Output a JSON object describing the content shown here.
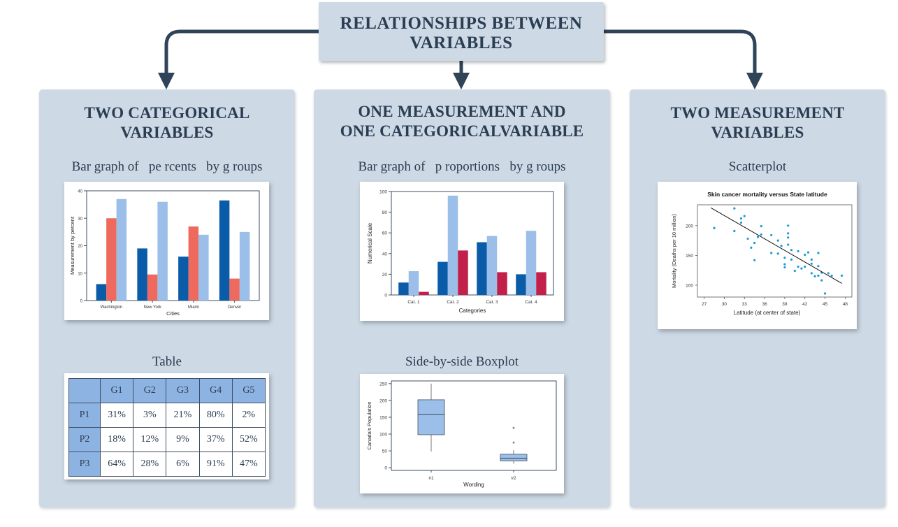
{
  "title": {
    "line1": "RELATIONSHIPS BETWEEN",
    "line2": "VARIABLES"
  },
  "panels": [
    {
      "title1": "TWO CATEGORICAL",
      "title2": "VARIABLES",
      "caption1": "Bar graph of   pe rcents   by g roups",
      "caption2": "Table"
    },
    {
      "title1": "ONE MEASUREMENT AND",
      "title2": "ONE CATEGORICALVARIABLE",
      "caption1": "Bar graph of   p roportions   by g roups",
      "caption2": "Side-by-side Boxplot"
    },
    {
      "title1": "TWO MEASUREMENT",
      "title2": "VARIABLES",
      "caption1": "Scatterplot"
    }
  ],
  "table": {
    "header": [
      "",
      "G1",
      "G2",
      "G3",
      "G4",
      "G5"
    ],
    "rows": [
      [
        "P1",
        "31%",
        "3%",
        "21%",
        "80%",
        "2%"
      ],
      [
        "P2",
        "18%",
        "12%",
        "9%",
        "37%",
        "52%"
      ],
      [
        "P3",
        "64%",
        "28%",
        "6%",
        "91%",
        "47%"
      ]
    ]
  },
  "colors": {
    "panel": "#cdd9e5",
    "arrow": "#2f4458",
    "text": "#2b3d52",
    "dark_blue": "#0a5ca8",
    "light_blue": "#9bbfe8",
    "salmon": "#ee6a5e",
    "crimson": "#c2204a",
    "table_header": "#8db3e2",
    "scatter": "#1a9ad6"
  },
  "chart_data": [
    {
      "type": "bar",
      "categories": [
        "Washington",
        "New York",
        "Miami",
        "Denver"
      ],
      "series": [
        {
          "values": [
            6,
            19,
            16,
            36.5
          ]
        },
        {
          "values": [
            30,
            9.5,
            27,
            8
          ]
        },
        {
          "values": [
            37,
            36,
            24,
            25
          ]
        }
      ],
      "xlabel": "Cities",
      "ylabel": "Measurement by percent",
      "ylim": [
        0,
        40
      ],
      "yticks": [
        0,
        10,
        20,
        30,
        40
      ]
    },
    {
      "type": "bar",
      "categories": [
        "Cat. 1",
        "Cat. 2",
        "Cat. 3",
        "Cat. 4"
      ],
      "series": [
        {
          "values": [
            12,
            32,
            51,
            20
          ]
        },
        {
          "values": [
            23,
            96,
            57,
            62
          ]
        },
        {
          "values": [
            3,
            43,
            22,
            22
          ]
        }
      ],
      "xlabel": "Categories",
      "ylabel": "Numerical Scale",
      "ylim": [
        0,
        100
      ],
      "yticks": [
        0,
        20,
        40,
        60,
        80,
        100
      ]
    },
    {
      "type": "boxplot",
      "categories": [
        "#1",
        "#2"
      ],
      "boxes": [
        {
          "min": 48,
          "q1": 98,
          "median": 158,
          "q3": 202,
          "max": 250,
          "outliers": []
        },
        {
          "min": 12,
          "q1": 20,
          "median": 28,
          "q3": 40,
          "max": 52,
          "outliers": [
            73,
            117
          ]
        }
      ],
      "xlabel": "Wording",
      "ylabel": "Canada's Population",
      "ylim": [
        0,
        250
      ],
      "yticks": [
        0,
        50,
        100,
        150,
        200,
        250
      ]
    },
    {
      "type": "scatter",
      "title": "Skin cancer mortality versus State latitude",
      "xlabel": "Latitude (at center of state)",
      "ylabel": "Mortality (Deaths per 10 million)",
      "xlim": [
        26,
        49
      ],
      "ylim": [
        80,
        235
      ],
      "xticks": [
        27,
        30,
        33,
        36,
        39,
        42,
        45,
        48
      ],
      "yticks": [
        100,
        150,
        200
      ],
      "points": [
        [
          28.5,
          196
        ],
        [
          31.5,
          229
        ],
        [
          32.5,
          205
        ],
        [
          32.5,
          212
        ],
        [
          33,
          216
        ],
        [
          31.5,
          191
        ],
        [
          33.5,
          178
        ],
        [
          34,
          163
        ],
        [
          34.5,
          171
        ],
        [
          35,
          181
        ],
        [
          34.5,
          142
        ],
        [
          35.5,
          199
        ],
        [
          35.5,
          185
        ],
        [
          37,
          184
        ],
        [
          37,
          154
        ],
        [
          38,
          175
        ],
        [
          38,
          153
        ],
        [
          38.5,
          166
        ],
        [
          39,
          146
        ],
        [
          39,
          135
        ],
        [
          39,
          130
        ],
        [
          39.5,
          200
        ],
        [
          39.5,
          187
        ],
        [
          39.5,
          180
        ],
        [
          39.5,
          168
        ],
        [
          40,
          159
        ],
        [
          40,
          143
        ],
        [
          40.5,
          124
        ],
        [
          41,
          157
        ],
        [
          41,
          131
        ],
        [
          41.5,
          128
        ],
        [
          42,
          131
        ],
        [
          42,
          151
        ],
        [
          42.5,
          155
        ],
        [
          43,
          143
        ],
        [
          43,
          136
        ],
        [
          43,
          120
        ],
        [
          43.5,
          115
        ],
        [
          44,
          154
        ],
        [
          44,
          132
        ],
        [
          44,
          116
        ],
        [
          44.5,
          121
        ],
        [
          44.5,
          108
        ],
        [
          45,
          86
        ],
        [
          45.5,
          120
        ],
        [
          46,
          116
        ],
        [
          47.5,
          116
        ]
      ],
      "regression": {
        "x": [
          28,
          47.5
        ],
        "y": [
          230,
          103
        ]
      }
    }
  ]
}
